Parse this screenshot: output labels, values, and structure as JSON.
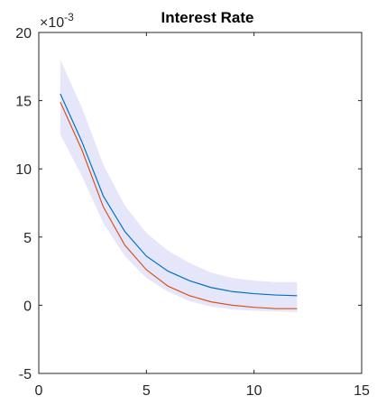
{
  "chart_data": {
    "type": "line",
    "title": "Interest Rate",
    "xlabel": "",
    "ylabel": "",
    "xlim": [
      0,
      15
    ],
    "ylim": [
      -5,
      20
    ],
    "xticks": [
      "0",
      "5",
      "10",
      "15"
    ],
    "xtick_values": [
      0,
      5,
      10,
      15
    ],
    "yticks": [
      "-5",
      "0",
      "5",
      "10",
      "15",
      "20"
    ],
    "ytick_values": [
      -5,
      0,
      5,
      10,
      15,
      20
    ],
    "y_exponent_label": "×10",
    "y_exponent_power": "-3",
    "grid": false,
    "legend": "none",
    "x": [
      1,
      2,
      3,
      4,
      5,
      6,
      7,
      8,
      9,
      10,
      11,
      12
    ],
    "series": [
      {
        "color": "#0072BD",
        "values": [
          15.5,
          12.0,
          8.0,
          5.4,
          3.6,
          2.5,
          1.8,
          1.3,
          1.0,
          0.85,
          0.75,
          0.7
        ]
      },
      {
        "color": "#D95319",
        "values": [
          14.9,
          11.4,
          7.2,
          4.4,
          2.6,
          1.4,
          0.7,
          0.25,
          0.0,
          -0.15,
          -0.25,
          -0.25
        ]
      }
    ],
    "band": {
      "color": "#E6E6FA",
      "lower": [
        12.5,
        9.5,
        6.0,
        3.6,
        2.0,
        1.0,
        0.3,
        -0.1,
        -0.3,
        -0.4,
        -0.45,
        -0.5
      ],
      "upper": [
        18.0,
        14.5,
        10.3,
        7.3,
        5.3,
        4.0,
        3.1,
        2.4,
        2.0,
        1.8,
        1.7,
        1.7
      ]
    }
  }
}
